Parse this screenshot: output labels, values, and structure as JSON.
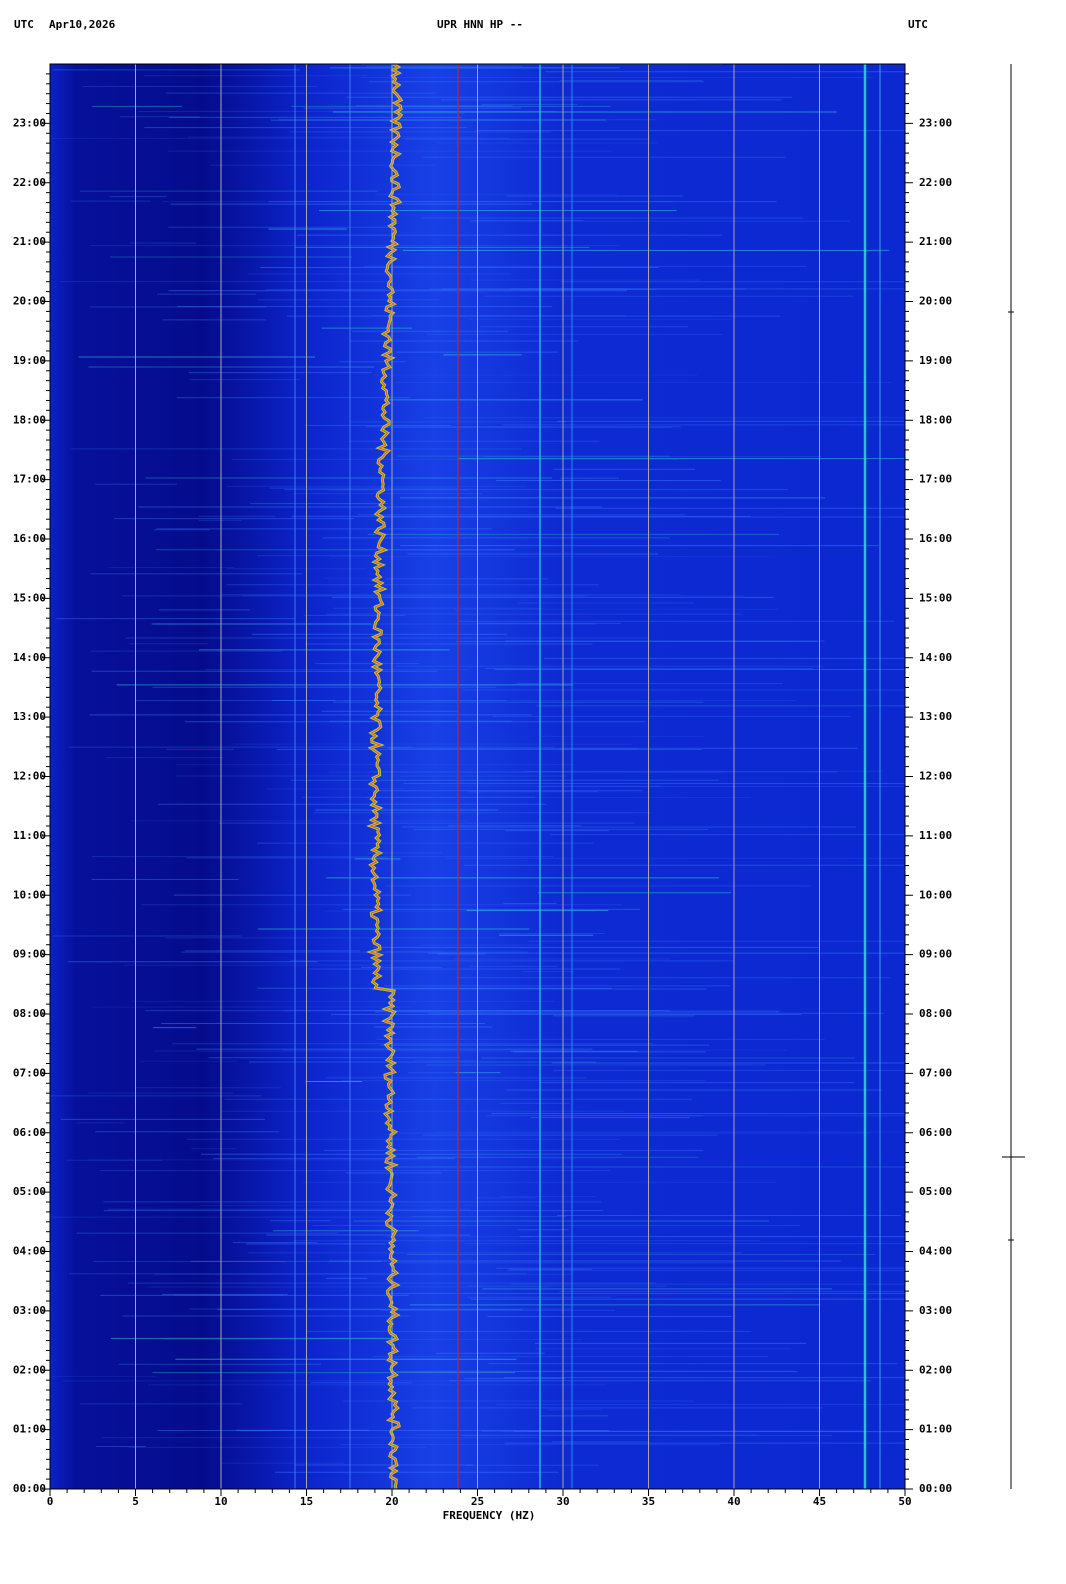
{
  "chart_data": {
    "type": "spectrogram",
    "title": "UPR HNN HP --",
    "date": "Apr10,2026",
    "timezone_left": "UTC",
    "timezone_right": "UTC",
    "xlabel": "FREQUENCY (HZ)",
    "xlim": [
      0,
      50
    ],
    "xticks": [
      0,
      5,
      10,
      15,
      20,
      25,
      30,
      35,
      40,
      45,
      50
    ],
    "ylim": [
      0,
      24
    ],
    "yticks": [
      {
        "value": 0,
        "label": "00:00"
      },
      {
        "value": 1,
        "label": "01:00"
      },
      {
        "value": 2,
        "label": "02:00"
      },
      {
        "value": 3,
        "label": "03:00"
      },
      {
        "value": 4,
        "label": "04:00"
      },
      {
        "value": 5,
        "label": "05:00"
      },
      {
        "value": 6,
        "label": "06:00"
      },
      {
        "value": 7,
        "label": "07:00"
      },
      {
        "value": 8,
        "label": "08:00"
      },
      {
        "value": 9,
        "label": "09:00"
      },
      {
        "value": 10,
        "label": "10:00"
      },
      {
        "value": 11,
        "label": "11:00"
      },
      {
        "value": 12,
        "label": "12:00"
      },
      {
        "value": 13,
        "label": "13:00"
      },
      {
        "value": 14,
        "label": "14:00"
      },
      {
        "value": 15,
        "label": "15:00"
      },
      {
        "value": 16,
        "label": "16:00"
      },
      {
        "value": 17,
        "label": "17:00"
      },
      {
        "value": 18,
        "label": "18:00"
      },
      {
        "value": 19,
        "label": "19:00"
      },
      {
        "value": 20,
        "label": "20:00"
      },
      {
        "value": 21,
        "label": "21:00"
      },
      {
        "value": 22,
        "label": "22:00"
      },
      {
        "value": 23,
        "label": "23:00"
      }
    ],
    "grid": true
  }
}
